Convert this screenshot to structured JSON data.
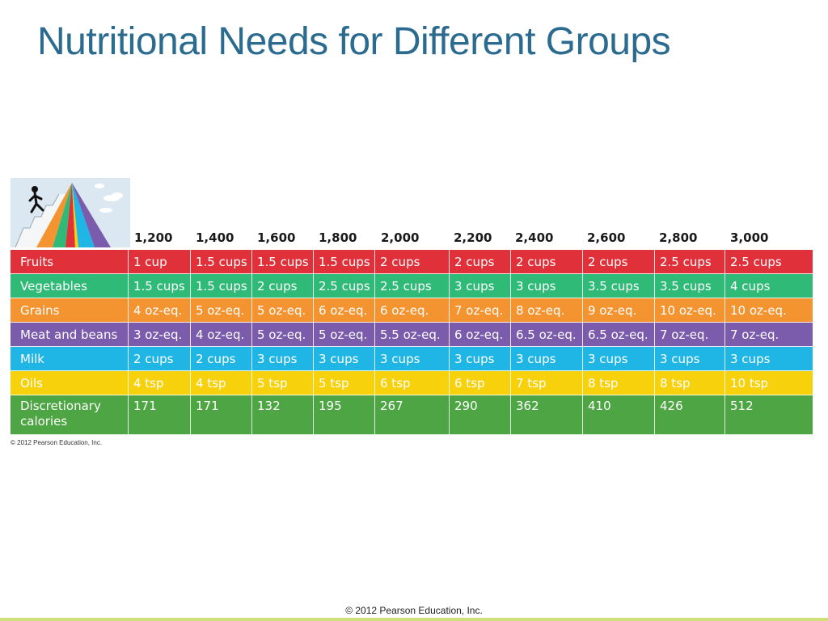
{
  "title": "Nutritional Needs for Different Groups",
  "calorie_levels": [
    "1,200",
    "1,400",
    "1,600",
    "1,800",
    "2,000",
    "2,200",
    "2,400",
    "2,600",
    "2,800",
    "3,000"
  ],
  "rows": [
    {
      "label": "Fruits",
      "color": "#e0313b",
      "values": [
        "1 cup",
        "1.5 cups",
        "1.5 cups",
        "1.5 cups",
        "2 cups",
        "2 cups",
        "2 cups",
        "2 cups",
        "2.5 cups",
        "2.5 cups"
      ]
    },
    {
      "label": "Vegetables",
      "color": "#2fba77",
      "values": [
        "1.5 cups",
        "1.5 cups",
        "2 cups",
        "2.5 cups",
        "2.5 cups",
        "3 cups",
        "3 cups",
        "3.5 cups",
        "3.5 cups",
        "4 cups"
      ]
    },
    {
      "label": "Grains",
      "color": "#f39431",
      "values": [
        "4 oz-eq.",
        "5 oz-eq.",
        "5 oz-eq.",
        "6 oz-eq.",
        "6 oz-eq.",
        "7 oz-eq.",
        "8 oz-eq.",
        "9 oz-eq.",
        "10 oz-eq.",
        "10 oz-eq."
      ]
    },
    {
      "label": "Meat and beans",
      "color": "#7b5bac",
      "values": [
        "3 oz-eq.",
        "4 oz-eq.",
        "5 oz-eq.",
        "5 oz-eq.",
        "5.5 oz-eq.",
        "6 oz-eq.",
        "6.5 oz-eq.",
        "6.5 oz-eq.",
        "7 oz-eq.",
        "7 oz-eq."
      ]
    },
    {
      "label": "Milk",
      "color": "#1fb6e6",
      "values": [
        "2 cups",
        "2 cups",
        "3 cups",
        "3 cups",
        "3 cups",
        "3 cups",
        "3 cups",
        "3 cups",
        "3 cups",
        "3 cups"
      ]
    },
    {
      "label": "Oils",
      "color": "#f8d10d",
      "values": [
        "4 tsp",
        "4 tsp",
        "5 tsp",
        "5 tsp",
        "6 tsp",
        "6 tsp",
        "7 tsp",
        "8 tsp",
        "8 tsp",
        "10 tsp"
      ]
    },
    {
      "label": "Discretionary calories",
      "color": "#4ea544",
      "values": [
        "171",
        "171",
        "132",
        "195",
        "267",
        "290",
        "362",
        "410",
        "426",
        "512"
      ]
    }
  ],
  "table_credit": "© 2012 Pearson Education, Inc.",
  "footer_credit": "© 2012 Pearson Education, Inc.",
  "logo_icon": "food-pyramid-icon"
}
